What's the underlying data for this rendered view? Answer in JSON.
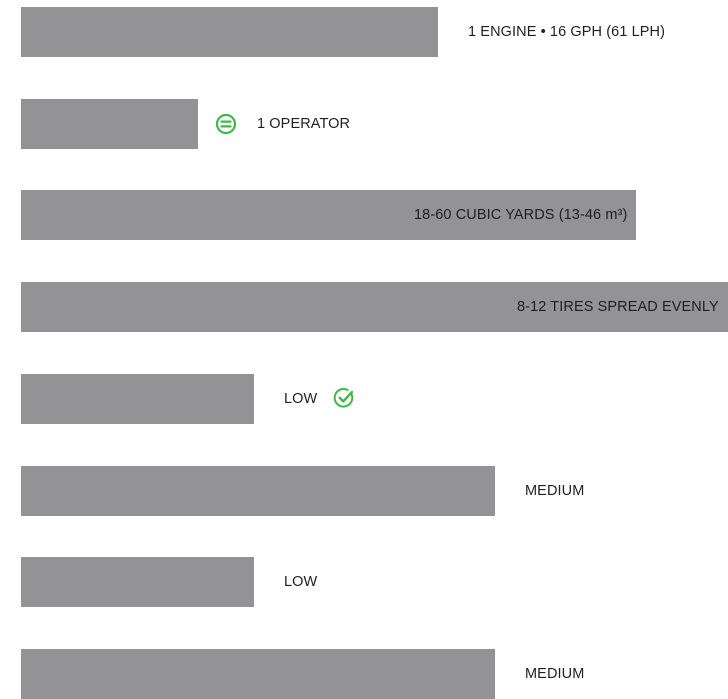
{
  "colors": {
    "bar": "#939395",
    "accent_green": "#3db84a",
    "text": "#1f1f1f"
  },
  "icons": {
    "operator_row": "equals-circle-icon",
    "low_row": "check-circle-icon"
  },
  "chart_data": {
    "type": "bar",
    "orientation": "horizontal",
    "title": "",
    "xlabel": "",
    "ylabel": "",
    "axes_shown": false,
    "grid": false,
    "legend": "none",
    "value_scale": "relative (0-1 of full width)",
    "categories": [
      "1 ENGINE • 16 GPH (61 LPH)",
      "1 OPERATOR",
      "18-60 CUBIC YARDS (13-46 m³)",
      "8-12 TIRES SPREAD EVENLY",
      "LOW",
      "MEDIUM",
      "LOW",
      "MEDIUM"
    ],
    "values": [
      0.59,
      0.25,
      0.87,
      1.0,
      0.33,
      0.67,
      0.33,
      0.67
    ],
    "label_position": [
      "outside",
      "outside",
      "inside",
      "inside",
      "outside",
      "outside",
      "outside",
      "outside"
    ],
    "row_icons": [
      "",
      "equals-circle-icon",
      "",
      "",
      "check-circle-icon",
      "",
      "",
      ""
    ]
  }
}
